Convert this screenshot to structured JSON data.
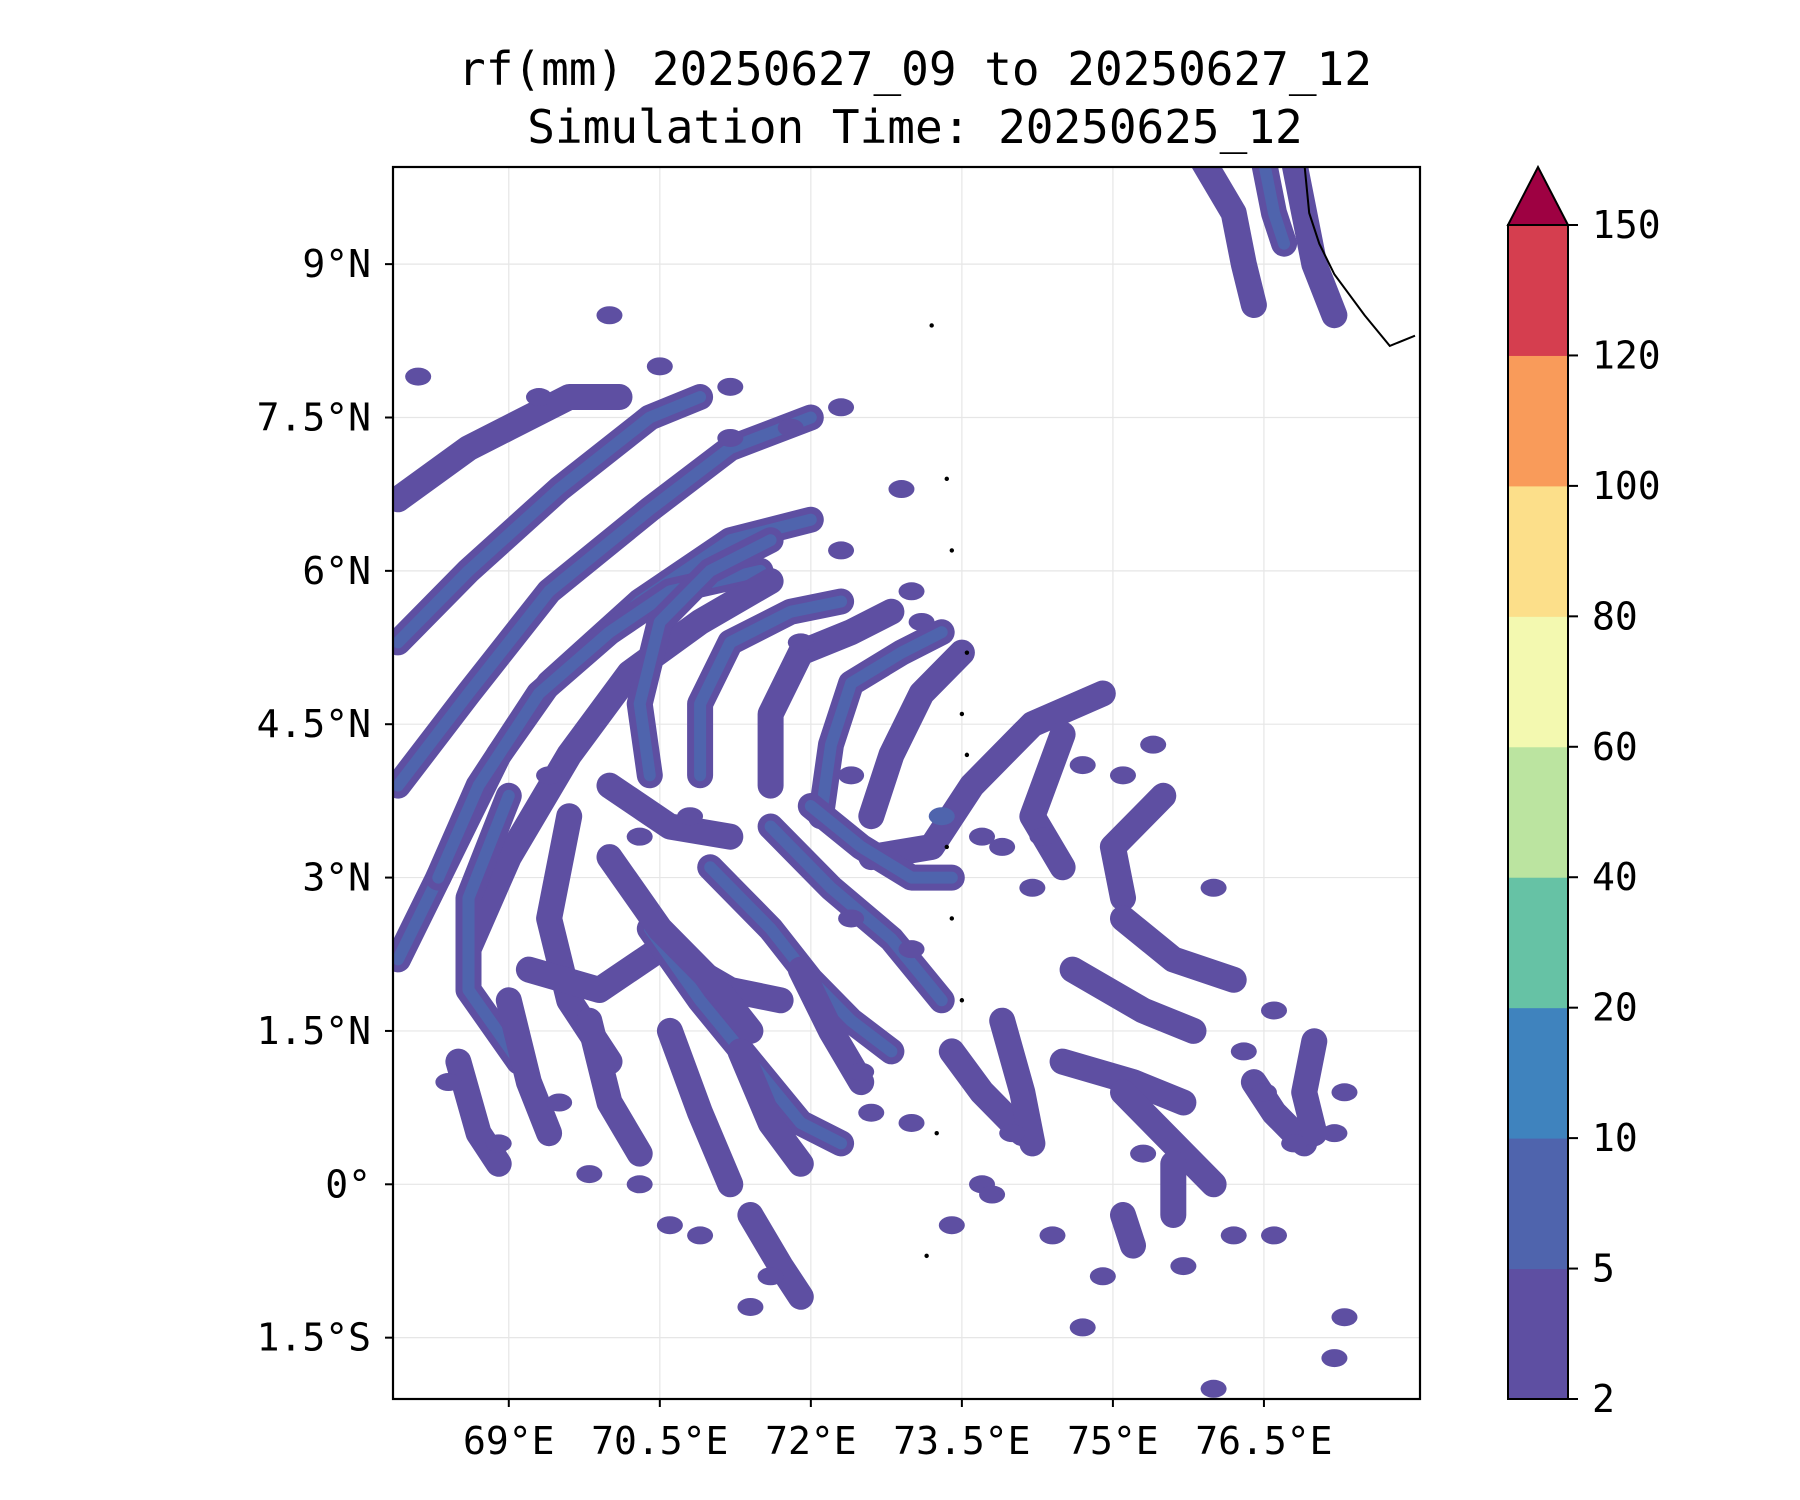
{
  "title": {
    "line1": "rf(mm) 20250627_09 to 20250627_12",
    "line2": "Simulation Time: 20250625_12"
  },
  "map": {
    "lon_range": [
      67.85,
      78.05
    ],
    "lat_range": [
      -2.1,
      9.95
    ],
    "gridlines": true,
    "lon_ticks": [
      {
        "value": 69.0,
        "label": "69°E"
      },
      {
        "value": 70.5,
        "label": "70.5°E"
      },
      {
        "value": 72.0,
        "label": "72°E"
      },
      {
        "value": 73.5,
        "label": "73.5°E"
      },
      {
        "value": 75.0,
        "label": "75°E"
      },
      {
        "value": 76.5,
        "label": "76.5°E"
      }
    ],
    "lat_ticks": [
      {
        "value": 9.0,
        "label": "9°N"
      },
      {
        "value": 7.5,
        "label": "7.5°N"
      },
      {
        "value": 6.0,
        "label": "6°N"
      },
      {
        "value": 4.5,
        "label": "4.5°N"
      },
      {
        "value": 3.0,
        "label": "3°N"
      },
      {
        "value": 1.5,
        "label": "1.5°N"
      },
      {
        "value": 0.0,
        "label": "0°"
      },
      {
        "value": -1.5,
        "label": "1.5°S"
      }
    ],
    "rain_bands": [
      {
        "pts": [
          [
            67.9,
            6.7
          ],
          [
            68.6,
            7.2
          ],
          [
            69.0,
            7.4
          ],
          [
            69.6,
            7.7
          ],
          [
            70.1,
            7.7
          ]
        ],
        "level": 0
      },
      {
        "pts": [
          [
            67.9,
            5.3
          ],
          [
            68.6,
            6.0
          ],
          [
            69.5,
            6.8
          ],
          [
            70.4,
            7.5
          ],
          [
            70.9,
            7.7
          ]
        ],
        "level": 1
      },
      {
        "pts": [
          [
            67.9,
            3.9
          ],
          [
            68.6,
            4.8
          ],
          [
            69.4,
            5.8
          ],
          [
            70.4,
            6.6
          ],
          [
            71.2,
            7.2
          ],
          [
            72.0,
            7.5
          ]
        ],
        "level": 1
      },
      {
        "pts": [
          [
            67.9,
            2.2
          ],
          [
            68.4,
            3.2
          ],
          [
            68.9,
            4.2
          ],
          [
            69.4,
            4.9
          ],
          [
            70.3,
            5.7
          ],
          [
            71.2,
            6.3
          ],
          [
            72.0,
            6.5
          ]
        ],
        "level": 1
      },
      {
        "pts": [
          [
            68.3,
            3.0
          ],
          [
            68.7,
            3.9
          ],
          [
            69.3,
            4.8
          ],
          [
            70.0,
            5.4
          ],
          [
            70.6,
            5.8
          ],
          [
            71.5,
            6.0
          ]
        ],
        "level": 1
      },
      {
        "pts": [
          [
            68.6,
            2.3
          ],
          [
            69.0,
            3.2
          ],
          [
            69.6,
            4.2
          ],
          [
            70.2,
            5.0
          ],
          [
            70.9,
            5.5
          ],
          [
            71.6,
            5.9
          ]
        ],
        "level": 0
      },
      {
        "pts": [
          [
            70.4,
            4.0
          ],
          [
            70.3,
            4.7
          ],
          [
            70.5,
            5.5
          ],
          [
            71.0,
            6.0
          ],
          [
            71.6,
            6.3
          ]
        ],
        "level": 1
      },
      {
        "pts": [
          [
            70.9,
            4.0
          ],
          [
            70.9,
            4.7
          ],
          [
            71.2,
            5.3
          ],
          [
            71.8,
            5.6
          ],
          [
            72.3,
            5.7
          ]
        ],
        "level": 1
      },
      {
        "pts": [
          [
            71.6,
            3.9
          ],
          [
            71.6,
            4.6
          ],
          [
            71.9,
            5.2
          ],
          [
            72.4,
            5.4
          ],
          [
            72.8,
            5.6
          ]
        ],
        "level": 0
      },
      {
        "pts": [
          [
            72.1,
            3.6
          ],
          [
            72.2,
            4.3
          ],
          [
            72.4,
            4.9
          ],
          [
            72.9,
            5.2
          ],
          [
            73.3,
            5.4
          ]
        ],
        "level": 1
      },
      {
        "pts": [
          [
            72.6,
            3.6
          ],
          [
            72.8,
            4.2
          ],
          [
            73.1,
            4.8
          ],
          [
            73.5,
            5.2
          ]
        ],
        "level": 0
      },
      {
        "pts": [
          [
            72.6,
            3.2
          ],
          [
            73.2,
            3.3
          ],
          [
            73.6,
            3.9
          ],
          [
            74.2,
            4.5
          ],
          [
            74.9,
            4.8
          ]
        ],
        "level": 0
      },
      {
        "pts": [
          [
            69.0,
            3.8
          ],
          [
            68.6,
            2.8
          ],
          [
            68.6,
            1.9
          ],
          [
            69.1,
            1.2
          ]
        ],
        "level": 1
      },
      {
        "pts": [
          [
            69.6,
            3.6
          ],
          [
            69.4,
            2.6
          ],
          [
            69.6,
            1.8
          ],
          [
            70.0,
            1.2
          ]
        ],
        "level": 0
      },
      {
        "pts": [
          [
            69.2,
            2.1
          ],
          [
            69.9,
            1.9
          ],
          [
            70.5,
            2.3
          ],
          [
            71.2,
            1.9
          ],
          [
            71.7,
            1.8
          ]
        ],
        "level": 0
      },
      {
        "pts": [
          [
            70.4,
            2.5
          ],
          [
            70.9,
            1.8
          ],
          [
            71.4,
            1.2
          ],
          [
            71.9,
            0.6
          ],
          [
            72.3,
            0.4
          ]
        ],
        "level": 1
      },
      {
        "pts": [
          [
            71.0,
            3.1
          ],
          [
            71.6,
            2.5
          ],
          [
            72.0,
            2.0
          ],
          [
            72.4,
            1.6
          ],
          [
            72.8,
            1.3
          ]
        ],
        "level": 1
      },
      {
        "pts": [
          [
            71.6,
            3.5
          ],
          [
            72.2,
            2.9
          ],
          [
            72.8,
            2.4
          ],
          [
            73.3,
            1.8
          ]
        ],
        "level": 1
      },
      {
        "pts": [
          [
            72.0,
            3.7
          ],
          [
            72.5,
            3.3
          ],
          [
            73.0,
            3.0
          ],
          [
            73.4,
            3.0
          ]
        ],
        "level": 1
      },
      {
        "pts": [
          [
            70.0,
            3.2
          ],
          [
            70.5,
            2.5
          ],
          [
            71.0,
            2.0
          ],
          [
            71.4,
            1.5
          ]
        ],
        "level": 0
      },
      {
        "pts": [
          [
            69.0,
            1.8
          ],
          [
            69.2,
            1.0
          ],
          [
            69.4,
            0.5
          ]
        ],
        "level": 0
      },
      {
        "pts": [
          [
            69.8,
            1.6
          ],
          [
            70.0,
            0.8
          ],
          [
            70.3,
            0.3
          ]
        ],
        "level": 0
      },
      {
        "pts": [
          [
            70.6,
            1.5
          ],
          [
            70.9,
            0.7
          ],
          [
            71.2,
            0.0
          ]
        ],
        "level": 0
      },
      {
        "pts": [
          [
            71.3,
            1.3
          ],
          [
            71.6,
            0.6
          ],
          [
            71.9,
            0.2
          ]
        ],
        "level": 0
      },
      {
        "pts": [
          [
            71.9,
            2.1
          ],
          [
            72.2,
            1.5
          ],
          [
            72.5,
            1.0
          ]
        ],
        "level": 0
      },
      {
        "pts": [
          [
            68.5,
            1.2
          ],
          [
            68.7,
            0.5
          ],
          [
            68.9,
            0.2
          ]
        ],
        "level": 0
      },
      {
        "pts": [
          [
            70.0,
            3.9
          ],
          [
            70.6,
            3.5
          ],
          [
            71.2,
            3.4
          ]
        ],
        "level": 0
      },
      {
        "pts": [
          [
            74.5,
            4.4
          ],
          [
            74.2,
            3.6
          ],
          [
            74.5,
            3.1
          ]
        ],
        "level": 0
      },
      {
        "pts": [
          [
            75.5,
            3.8
          ],
          [
            75.0,
            3.3
          ],
          [
            75.1,
            2.8
          ]
        ],
        "level": 0
      },
      {
        "pts": [
          [
            74.6,
            2.1
          ],
          [
            75.3,
            1.7
          ],
          [
            75.8,
            1.5
          ]
        ],
        "level": 0
      },
      {
        "pts": [
          [
            75.1,
            2.6
          ],
          [
            75.6,
            2.2
          ],
          [
            76.2,
            2.0
          ]
        ],
        "level": 0
      },
      {
        "pts": [
          [
            74.5,
            1.2
          ],
          [
            75.2,
            1.0
          ],
          [
            75.7,
            0.8
          ]
        ],
        "level": 0
      },
      {
        "pts": [
          [
            75.1,
            0.9
          ],
          [
            75.6,
            0.4
          ],
          [
            76.0,
            0.0
          ]
        ],
        "level": 0
      },
      {
        "pts": [
          [
            73.4,
            1.3
          ],
          [
            73.7,
            0.9
          ],
          [
            74.1,
            0.5
          ]
        ],
        "level": 0
      },
      {
        "pts": [
          [
            73.9,
            1.6
          ],
          [
            74.1,
            0.9
          ],
          [
            74.2,
            0.4
          ]
        ],
        "level": 0
      },
      {
        "pts": [
          [
            76.4,
            1.0
          ],
          [
            76.6,
            0.7
          ],
          [
            76.9,
            0.4
          ]
        ],
        "level": 0
      },
      {
        "pts": [
          [
            77.0,
            1.4
          ],
          [
            76.9,
            0.9
          ],
          [
            77.0,
            0.5
          ]
        ],
        "level": 0
      },
      {
        "pts": [
          [
            71.4,
            -0.3
          ],
          [
            71.7,
            -0.8
          ],
          [
            71.9,
            -1.1
          ]
        ],
        "level": 0
      },
      {
        "pts": [
          [
            75.1,
            -0.3
          ],
          [
            75.2,
            -0.6
          ]
        ],
        "level": 0
      },
      {
        "pts": [
          [
            75.6,
            0.2
          ],
          [
            75.6,
            -0.3
          ]
        ],
        "level": 0
      },
      {
        "pts": [
          [
            75.9,
            10.0
          ],
          [
            76.2,
            9.5
          ],
          [
            76.3,
            9.0
          ],
          [
            76.4,
            8.6
          ]
        ],
        "level": 0
      },
      {
        "pts": [
          [
            76.8,
            10.0
          ],
          [
            76.9,
            9.5
          ],
          [
            77.0,
            9.0
          ],
          [
            77.2,
            8.5
          ]
        ],
        "level": 0
      },
      {
        "pts": [
          [
            76.5,
            10.0
          ],
          [
            76.6,
            9.5
          ],
          [
            76.7,
            9.2
          ]
        ],
        "level": 1
      }
    ],
    "rain_blobs": [
      {
        "lon": 68.1,
        "lat": 7.9,
        "level": 0
      },
      {
        "lon": 69.3,
        "lat": 7.7,
        "level": 0
      },
      {
        "lon": 70.0,
        "lat": 8.5,
        "level": 0
      },
      {
        "lon": 70.5,
        "lat": 8.0,
        "level": 0
      },
      {
        "lon": 71.2,
        "lat": 7.8,
        "level": 0
      },
      {
        "lon": 71.8,
        "lat": 7.4,
        "level": 0
      },
      {
        "lon": 72.3,
        "lat": 7.6,
        "level": 0
      },
      {
        "lon": 71.2,
        "lat": 7.3,
        "level": 0
      },
      {
        "lon": 72.9,
        "lat": 6.8,
        "level": 0
      },
      {
        "lon": 72.3,
        "lat": 6.2,
        "level": 0
      },
      {
        "lon": 73.0,
        "lat": 5.8,
        "level": 0
      },
      {
        "lon": 72.4,
        "lat": 4.0,
        "level": 0
      },
      {
        "lon": 73.3,
        "lat": 3.6,
        "level": 1
      },
      {
        "lon": 73.7,
        "lat": 3.4,
        "level": 0
      },
      {
        "lon": 74.7,
        "lat": 4.1,
        "level": 0
      },
      {
        "lon": 75.1,
        "lat": 4.0,
        "level": 0
      },
      {
        "lon": 75.4,
        "lat": 4.3,
        "level": 0
      },
      {
        "lon": 74.2,
        "lat": 2.9,
        "level": 0
      },
      {
        "lon": 73.9,
        "lat": 3.3,
        "level": 0
      },
      {
        "lon": 74.3,
        "lat": 3.4,
        "level": 0
      },
      {
        "lon": 76.0,
        "lat": 2.9,
        "level": 0
      },
      {
        "lon": 76.3,
        "lat": 1.3,
        "level": 0
      },
      {
        "lon": 76.6,
        "lat": 1.7,
        "level": 0
      },
      {
        "lon": 77.3,
        "lat": 0.9,
        "level": 0
      },
      {
        "lon": 77.2,
        "lat": 0.5,
        "level": 0
      },
      {
        "lon": 76.8,
        "lat": 0.4,
        "level": 0
      },
      {
        "lon": 75.3,
        "lat": 0.3,
        "level": 0
      },
      {
        "lon": 74.4,
        "lat": -0.5,
        "level": 0
      },
      {
        "lon": 73.4,
        "lat": -0.4,
        "level": 0
      },
      {
        "lon": 74.9,
        "lat": -0.9,
        "level": 0
      },
      {
        "lon": 74.7,
        "lat": -1.4,
        "level": 0
      },
      {
        "lon": 75.7,
        "lat": -0.8,
        "level": 0
      },
      {
        "lon": 76.2,
        "lat": -0.5,
        "level": 0
      },
      {
        "lon": 76.6,
        "lat": -0.5,
        "level": 0
      },
      {
        "lon": 76.0,
        "lat": -2.0,
        "level": 0
      },
      {
        "lon": 77.3,
        "lat": -1.3,
        "level": 0
      },
      {
        "lon": 77.2,
        "lat": -1.7,
        "level": 0
      },
      {
        "lon": 71.6,
        "lat": -0.9,
        "level": 0
      },
      {
        "lon": 71.4,
        "lat": -1.2,
        "level": 0
      },
      {
        "lon": 70.9,
        "lat": -0.5,
        "level": 0
      },
      {
        "lon": 70.6,
        "lat": -0.4,
        "level": 0
      },
      {
        "lon": 70.3,
        "lat": 0.0,
        "level": 0
      },
      {
        "lon": 69.8,
        "lat": 0.1,
        "level": 0
      },
      {
        "lon": 68.9,
        "lat": 0.4,
        "level": 0
      },
      {
        "lon": 69.5,
        "lat": 0.8,
        "level": 0
      },
      {
        "lon": 68.4,
        "lat": 1.0,
        "level": 0
      },
      {
        "lon": 69.4,
        "lat": 4.0,
        "level": 0
      },
      {
        "lon": 70.8,
        "lat": 3.6,
        "level": 0
      },
      {
        "lon": 70.3,
        "lat": 3.4,
        "level": 0
      },
      {
        "lon": 73.1,
        "lat": 5.5,
        "level": 0
      },
      {
        "lon": 71.9,
        "lat": 5.3,
        "level": 0
      },
      {
        "lon": 73.0,
        "lat": 2.3,
        "level": 0
      },
      {
        "lon": 72.4,
        "lat": 2.6,
        "level": 0
      },
      {
        "lon": 72.5,
        "lat": 1.1,
        "level": 0
      },
      {
        "lon": 72.6,
        "lat": 0.7,
        "level": 0
      },
      {
        "lon": 73.0,
        "lat": 0.6,
        "level": 0
      },
      {
        "lon": 73.7,
        "lat": 0.0,
        "level": 0
      },
      {
        "lon": 74.0,
        "lat": 0.5,
        "level": 0
      },
      {
        "lon": 73.8,
        "lat": -0.1,
        "level": 0
      },
      {
        "lon": 76.5,
        "lat": 0.9,
        "level": 0
      }
    ],
    "coastline": [
      [
        76.9,
        10.0
      ],
      [
        76.95,
        9.5
      ],
      [
        77.05,
        9.2
      ],
      [
        77.2,
        8.9
      ],
      [
        77.5,
        8.5
      ],
      [
        77.75,
        8.2
      ],
      [
        78.0,
        8.3
      ]
    ],
    "atolls": [
      [
        73.2,
        8.4
      ],
      [
        73.35,
        6.9
      ],
      [
        73.4,
        6.2
      ],
      [
        73.55,
        5.2
      ],
      [
        73.5,
        4.6
      ],
      [
        73.55,
        4.2
      ],
      [
        73.35,
        3.3
      ],
      [
        73.4,
        2.6
      ],
      [
        73.5,
        1.8
      ],
      [
        73.25,
        0.5
      ],
      [
        73.15,
        -0.7
      ]
    ]
  },
  "colorbar": {
    "levels": [
      2,
      5,
      10,
      20,
      40,
      60,
      80,
      100,
      120,
      150
    ],
    "labels": [
      "2",
      "5",
      "10",
      "20",
      "40",
      "60",
      "80",
      "100",
      "120",
      "150"
    ],
    "colors": [
      "#5e4fa2",
      "#4f64ad",
      "#3f83be",
      "#66c2a5",
      "#bbe4a0",
      "#f3f9b0",
      "#fcdf8a",
      "#f99b5a",
      "#d53e4f"
    ],
    "extend_color": "#9e0142",
    "extend": "max"
  },
  "colors": {
    "grid": "#e6e6e6",
    "coast": "#000000"
  }
}
